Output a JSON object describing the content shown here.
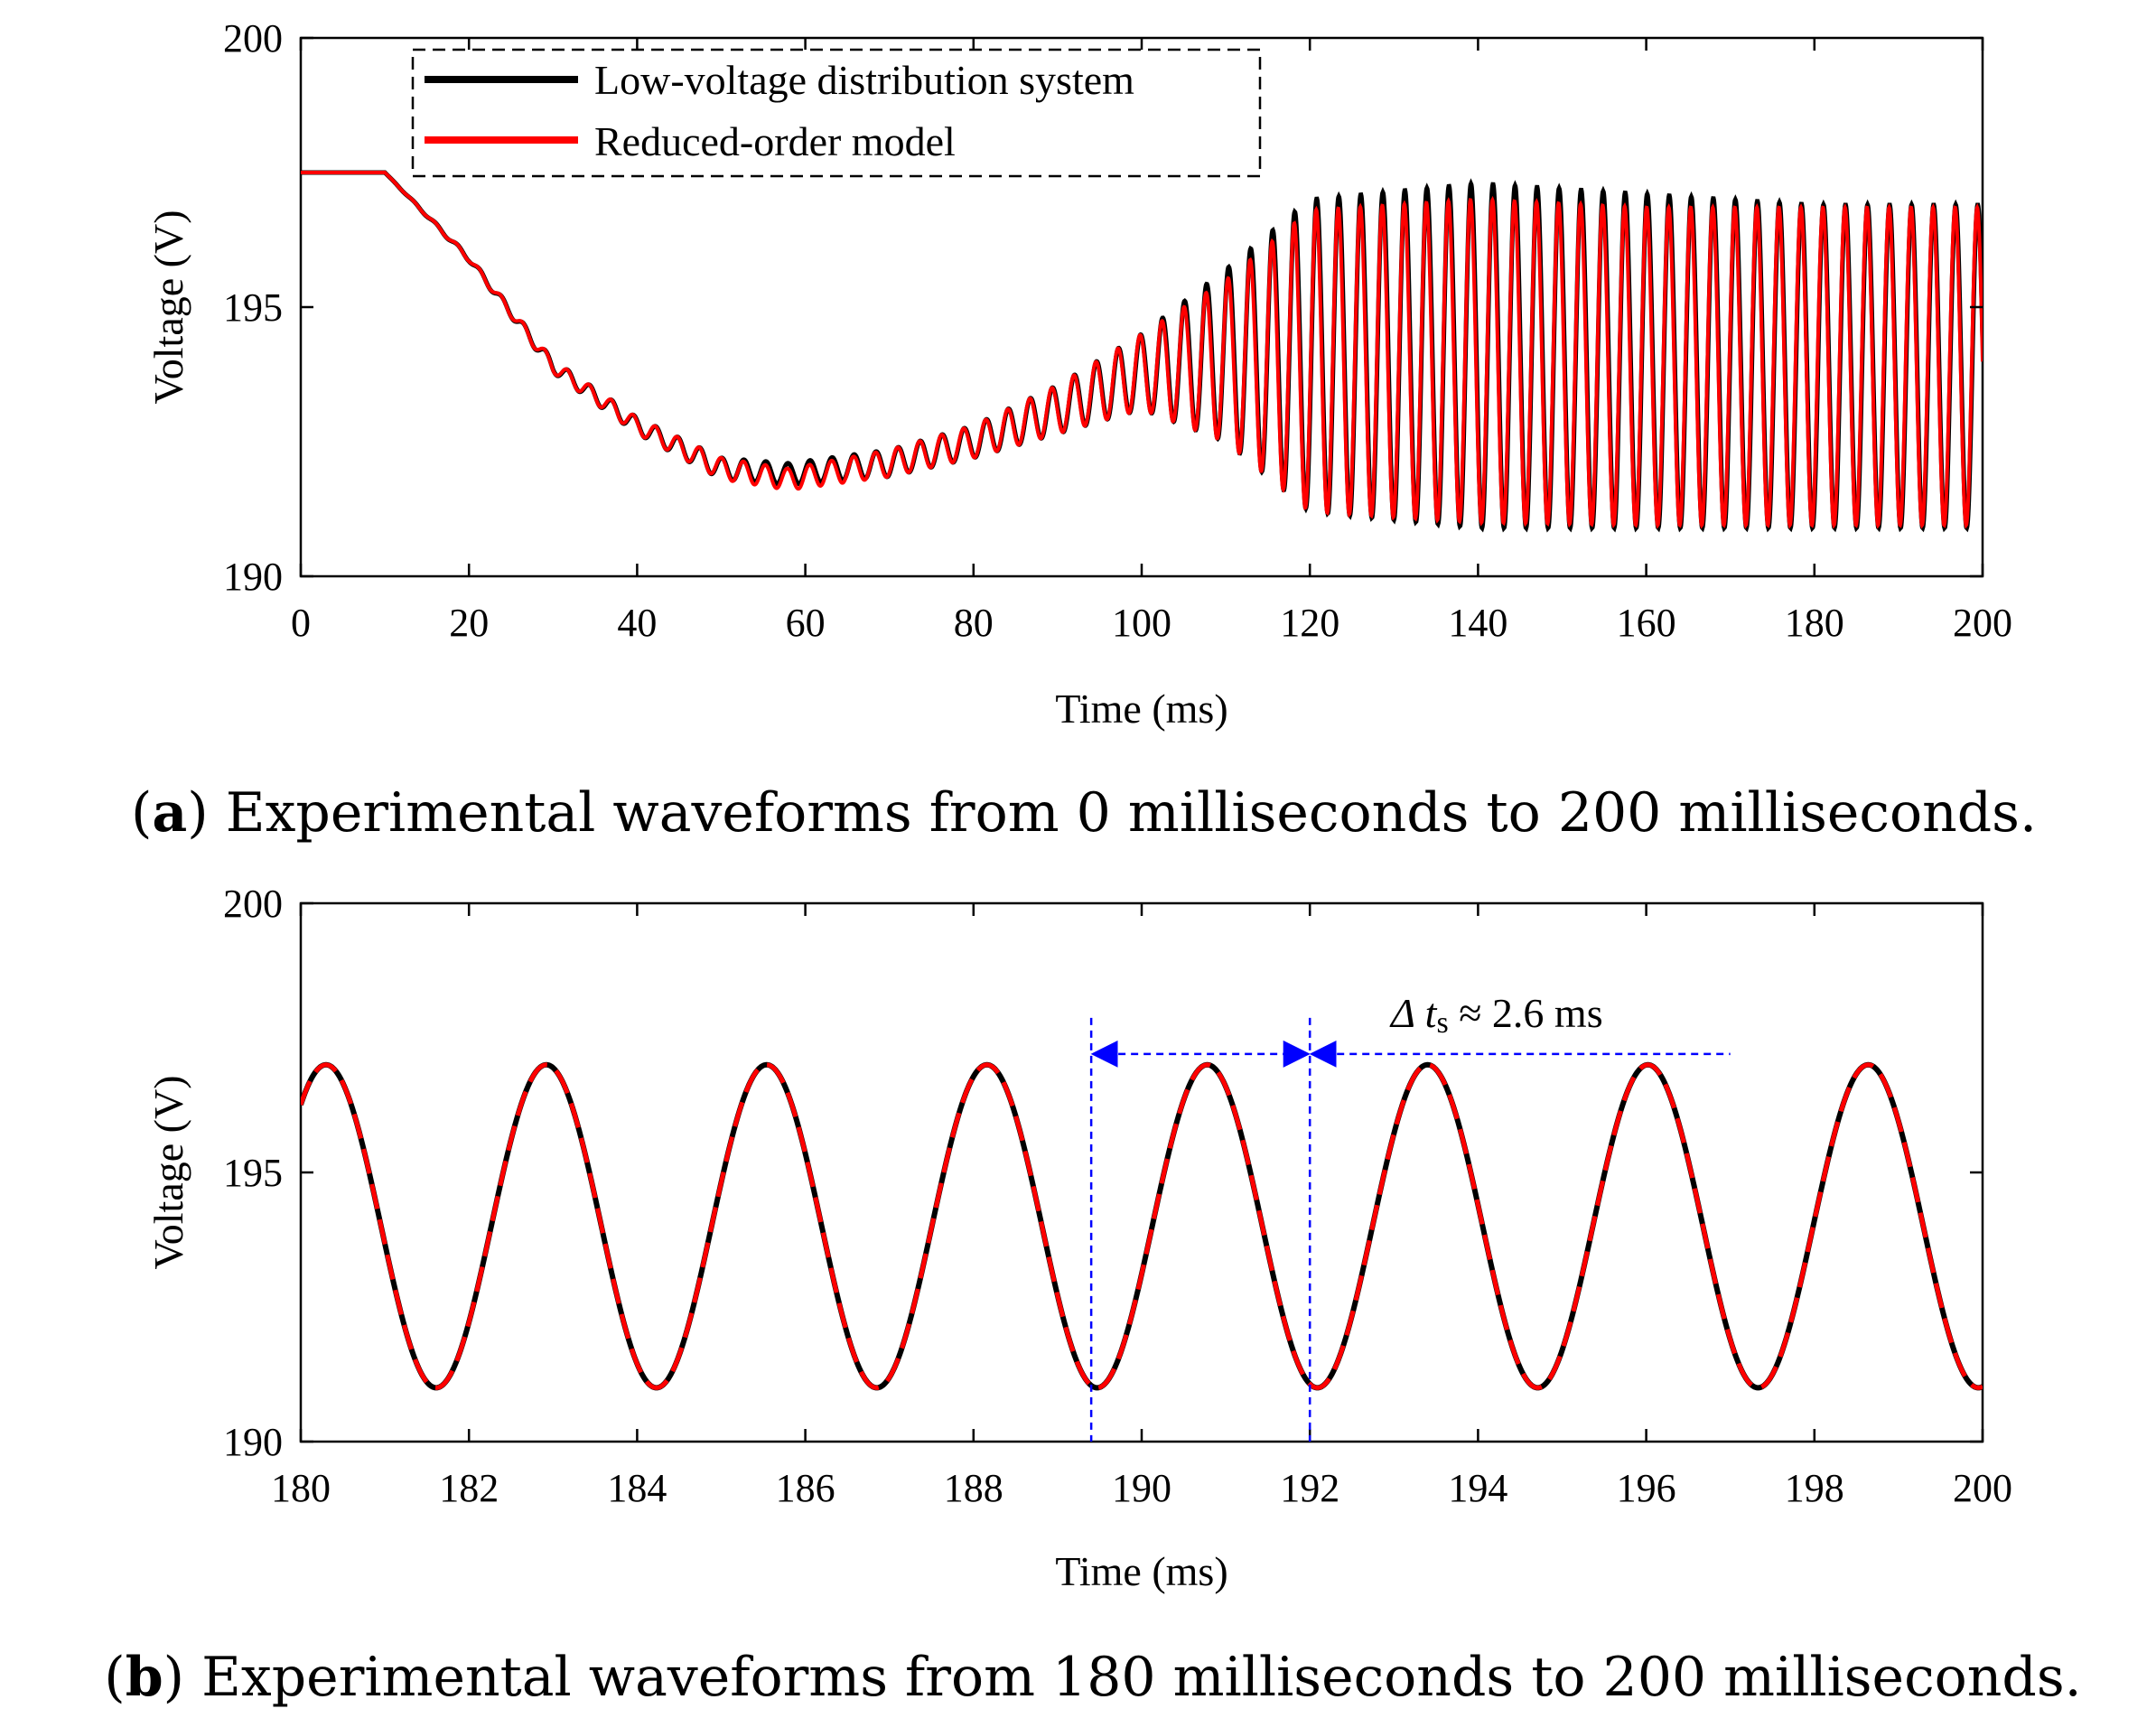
{
  "colors": {
    "black_series": "#000000",
    "red_series": "#ff0000",
    "annotation": "#0000ff"
  },
  "chart_data": [
    {
      "type": "line",
      "panel": "a",
      "xlabel": "Time (ms)",
      "ylabel": "Voltage (V)",
      "xlim": [
        0,
        200
      ],
      "ylim": [
        190,
        200
      ],
      "xticks": [
        "0",
        "20",
        "40",
        "60",
        "80",
        "100",
        "120",
        "140",
        "160",
        "180",
        "200"
      ],
      "yticks": [
        "190",
        "195",
        "200"
      ],
      "legend": {
        "placement": "top-left",
        "frame": "dashed"
      },
      "series": [
        {
          "name": "Low-voltage distribution system",
          "color": "#000000",
          "style": "solid",
          "description_points": {
            "x": [
              0,
              10,
              20,
              30,
              40,
              50,
              58,
              70,
              80,
              90,
              100,
              110,
              120,
              140,
              160,
              180,
              200
            ],
            "y_center": [
              197.5,
              197.5,
              195.9,
              193.9,
              192.8,
              192.0,
              191.9,
              192.1,
              192.5,
              193.1,
              193.8,
              194.1,
              194.1,
              194.1,
              194.0,
              193.9,
              193.9
            ],
            "amplitude": [
              0,
              0,
              0.05,
              0.12,
              0.15,
              0.2,
              0.2,
              0.25,
              0.3,
              0.45,
              0.7,
              1.6,
              2.9,
              3.2,
              3.1,
              3.0,
              3.0
            ]
          }
        },
        {
          "name": "Reduced-order model",
          "color": "#ff0000",
          "style": "solid",
          "description_points": {
            "x": [
              0,
              10,
              20,
              30,
              40,
              50,
              58,
              70,
              80,
              90,
              100,
              110,
              120,
              140,
              160,
              180,
              200
            ],
            "y_center": [
              197.5,
              197.5,
              195.9,
              193.9,
              192.8,
              192.0,
              191.8,
              192.1,
              192.5,
              193.1,
              193.8,
              194.0,
              194.0,
              194.0,
              193.9,
              193.9,
              193.9
            ],
            "amplitude": [
              0,
              0,
              0.05,
              0.12,
              0.15,
              0.2,
              0.2,
              0.25,
              0.3,
              0.45,
              0.7,
              1.5,
              2.8,
              3.0,
              2.95,
              2.95,
              2.95
            ]
          }
        }
      ],
      "caption": {
        "bold": "a",
        "text": " Experimental waveforms from 0 milliseconds to 200 milliseconds."
      }
    },
    {
      "type": "line",
      "panel": "b",
      "xlabel": "Time (ms)",
      "ylabel": "Voltage (V)",
      "xlim": [
        180,
        200
      ],
      "ylim": [
        190,
        200
      ],
      "xticks": [
        "180",
        "182",
        "184",
        "186",
        "188",
        "190",
        "192",
        "194",
        "196",
        "198",
        "200"
      ],
      "yticks": [
        "190",
        "195",
        "200"
      ],
      "series": [
        {
          "name": "Low-voltage distribution system",
          "color": "#000000",
          "style": "solid",
          "period_ms": 2.62,
          "center": 194.0,
          "amplitude": 3.0,
          "first_peak_ms": 180.3
        },
        {
          "name": "Reduced-order model",
          "color": "#ff0000",
          "style": "dashed",
          "period_ms": 2.62,
          "center": 194.0,
          "amplitude": 3.0,
          "first_peak_ms": 180.3
        }
      ],
      "annotations": {
        "vlines_ms": [
          189.4,
          192.0
        ],
        "arrow_y": 197.2,
        "line_end_ms": 197.0,
        "label_symbol": "Δ t",
        "label_sub": "s",
        "label_rest": " ≈ 2.6 ms"
      },
      "caption": {
        "bold": "b",
        "text": " Experimental waveforms from 180 milliseconds to 200 milliseconds."
      }
    }
  ]
}
